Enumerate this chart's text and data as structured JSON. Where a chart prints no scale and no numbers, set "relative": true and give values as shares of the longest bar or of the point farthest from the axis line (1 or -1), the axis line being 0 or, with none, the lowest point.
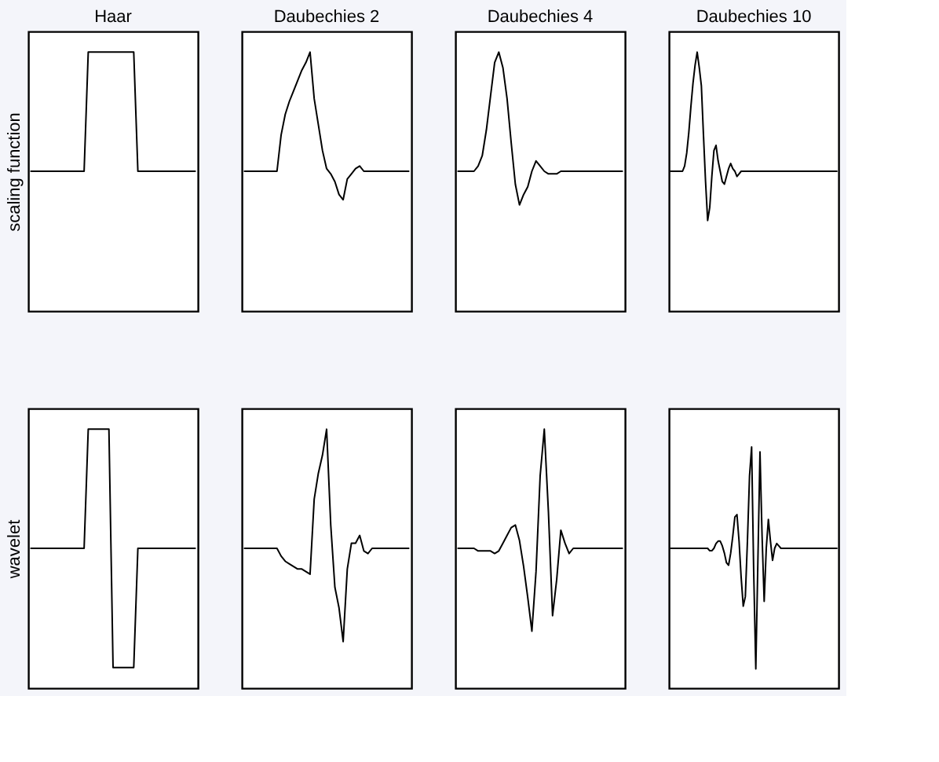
{
  "chart_data": [
    {
      "type": "line",
      "title": "Haar",
      "ylabel": "scaling function",
      "relative": true,
      "color": "#000000",
      "categories": [
        null,
        null,
        null,
        null,
        null,
        null,
        null,
        null,
        null,
        null,
        null,
        null,
        null,
        null,
        null,
        null,
        null,
        null,
        null,
        null,
        null,
        null,
        null,
        null,
        null,
        null,
        null,
        null,
        null,
        null,
        null,
        null,
        null,
        null,
        null,
        null,
        null,
        null,
        null,
        null,
        null
      ],
      "values": [
        0.54,
        0.54,
        0.54,
        0.54,
        0.54,
        0.54,
        0.54,
        0.54,
        0.54,
        0.54,
        0.54,
        0.54,
        0.54,
        0.54,
        1,
        1,
        1,
        1,
        1,
        1,
        1,
        1,
        1,
        1,
        1,
        1,
        0.54,
        0.54,
        0.54,
        0.54,
        0.54,
        0.54,
        0.54,
        0.54,
        0.54,
        0.54,
        0.54,
        0.54,
        0.54,
        0.54,
        0.54
      ]
    },
    {
      "type": "line",
      "title": "Daubechies 2",
      "relative": true,
      "color": "#000000",
      "categories": [
        null,
        null,
        null,
        null,
        null,
        null,
        null,
        null,
        null,
        null,
        null,
        null,
        null,
        null,
        null,
        null,
        null,
        null,
        null,
        null,
        null,
        null,
        null,
        null,
        null,
        null,
        null,
        null,
        null,
        null,
        null,
        null,
        null,
        null,
        null,
        null,
        null,
        null,
        null,
        null,
        null
      ],
      "values": [
        0.54,
        0.54,
        0.54,
        0.54,
        0.54,
        0.54,
        0.54,
        0.54,
        0.54,
        0.68,
        0.76,
        0.81,
        0.85,
        0.89,
        0.93,
        0.96,
        1,
        0.82,
        0.72,
        0.62,
        0.55,
        0.53,
        0.5,
        0.45,
        0.43,
        0.51,
        0.53,
        0.55,
        0.56,
        0.54,
        0.54,
        0.54,
        0.54,
        0.54,
        0.54,
        0.54,
        0.54,
        0.54,
        0.54,
        0.54,
        0.54
      ]
    },
    {
      "type": "line",
      "title": "Daubechies 4",
      "relative": true,
      "color": "#000000",
      "categories": [
        null,
        null,
        null,
        null,
        null,
        null,
        null,
        null,
        null,
        null,
        null,
        null,
        null,
        null,
        null,
        null,
        null,
        null,
        null,
        null,
        null,
        null,
        null,
        null,
        null,
        null,
        null,
        null,
        null,
        null,
        null,
        null,
        null,
        null,
        null,
        null,
        null,
        null,
        null,
        null,
        null
      ],
      "values": [
        0.54,
        0.54,
        0.54,
        0.54,
        0.54,
        0.56,
        0.6,
        0.7,
        0.83,
        0.96,
        1,
        0.94,
        0.82,
        0.65,
        0.49,
        0.41,
        0.45,
        0.48,
        0.54,
        0.58,
        0.56,
        0.54,
        0.53,
        0.53,
        0.53,
        0.54,
        0.54,
        0.54,
        0.54,
        0.54,
        0.54,
        0.54,
        0.54,
        0.54,
        0.54,
        0.54,
        0.54,
        0.54,
        0.54,
        0.54,
        0.54
      ]
    },
    {
      "type": "line",
      "title": "Daubechies 10",
      "relative": true,
      "color": "#000000",
      "categories": [
        null,
        null,
        null,
        null,
        null,
        null,
        null,
        null,
        null,
        null,
        null,
        null,
        null,
        null,
        null,
        null,
        null,
        null,
        null,
        null,
        null,
        null,
        null,
        null,
        null,
        null,
        null,
        null,
        null,
        null,
        null,
        null,
        null,
        null,
        null,
        null,
        null,
        null,
        null,
        null,
        null,
        null,
        null,
        null,
        null,
        null,
        null,
        null,
        null,
        null,
        null,
        null,
        null,
        null,
        null,
        null,
        null,
        null,
        null,
        null,
        null,
        null,
        null,
        null,
        null,
        null,
        null,
        null,
        null,
        null,
        null,
        null,
        null,
        null,
        null,
        null,
        null,
        null,
        null,
        null,
        null
      ],
      "values": [
        0.54,
        0.54,
        0.54,
        0.54,
        0.54,
        0.54,
        0.54,
        0.56,
        0.61,
        0.69,
        0.79,
        0.88,
        0.95,
        1,
        0.94,
        0.87,
        0.68,
        0.5,
        0.35,
        0.4,
        0.52,
        0.62,
        0.64,
        0.58,
        0.54,
        0.5,
        0.49,
        0.52,
        0.55,
        0.57,
        0.55,
        0.54,
        0.52,
        0.53,
        0.54,
        0.54,
        0.54,
        0.54,
        0.54,
        0.54,
        0.54,
        0.54,
        0.54,
        0.54,
        0.54,
        0.54,
        0.54,
        0.54,
        0.54,
        0.54,
        0.54,
        0.54,
        0.54,
        0.54,
        0.54,
        0.54,
        0.54,
        0.54,
        0.54,
        0.54,
        0.54,
        0.54,
        0.54,
        0.54,
        0.54,
        0.54,
        0.54,
        0.54,
        0.54,
        0.54,
        0.54,
        0.54,
        0.54,
        0.54,
        0.54,
        0.54,
        0.54,
        0.54,
        0.54,
        0.54,
        0.54
      ]
    },
    {
      "type": "line",
      "ylabel": "wavelet",
      "relative": true,
      "color": "#000000",
      "categories": [
        null,
        null,
        null,
        null,
        null,
        null,
        null,
        null,
        null,
        null,
        null,
        null,
        null,
        null,
        null,
        null,
        null,
        null,
        null,
        null,
        null,
        null,
        null,
        null,
        null,
        null,
        null,
        null,
        null,
        null,
        null,
        null,
        null,
        null,
        null,
        null,
        null,
        null,
        null,
        null,
        null
      ],
      "values": [
        0.54,
        0.54,
        0.54,
        0.54,
        0.54,
        0.54,
        0.54,
        0.54,
        0.54,
        0.54,
        0.54,
        0.54,
        0.54,
        0.54,
        1,
        1,
        1,
        1,
        1,
        1,
        0.08,
        0.08,
        0.08,
        0.08,
        0.08,
        0.08,
        0.54,
        0.54,
        0.54,
        0.54,
        0.54,
        0.54,
        0.54,
        0.54,
        0.54,
        0.54,
        0.54,
        0.54,
        0.54,
        0.54,
        0.54
      ]
    },
    {
      "type": "line",
      "relative": true,
      "color": "#000000",
      "categories": [
        null,
        null,
        null,
        null,
        null,
        null,
        null,
        null,
        null,
        null,
        null,
        null,
        null,
        null,
        null,
        null,
        null,
        null,
        null,
        null,
        null,
        null,
        null,
        null,
        null,
        null,
        null,
        null,
        null,
        null,
        null,
        null,
        null,
        null,
        null,
        null,
        null,
        null,
        null,
        null,
        null
      ],
      "values": [
        0.54,
        0.54,
        0.54,
        0.54,
        0.54,
        0.54,
        0.54,
        0.54,
        0.54,
        0.51,
        0.49,
        0.48,
        0.47,
        0.46,
        0.46,
        0.45,
        0.44,
        0.73,
        0.83,
        0.9,
        1,
        0.63,
        0.39,
        0.31,
        0.18,
        0.46,
        0.56,
        0.56,
        0.59,
        0.53,
        0.52,
        0.54,
        0.54,
        0.54,
        0.54,
        0.54,
        0.54,
        0.54,
        0.54,
        0.54,
        0.54
      ]
    },
    {
      "type": "line",
      "relative": true,
      "color": "#000000",
      "categories": [
        null,
        null,
        null,
        null,
        null,
        null,
        null,
        null,
        null,
        null,
        null,
        null,
        null,
        null,
        null,
        null,
        null,
        null,
        null,
        null,
        null,
        null,
        null,
        null,
        null,
        null,
        null,
        null,
        null,
        null,
        null,
        null,
        null,
        null,
        null,
        null,
        null,
        null,
        null,
        null,
        null
      ],
      "values": [
        0.54,
        0.54,
        0.54,
        0.54,
        0.54,
        0.53,
        0.53,
        0.53,
        0.53,
        0.52,
        0.53,
        0.56,
        0.59,
        0.62,
        0.63,
        0.57,
        0.47,
        0.35,
        0.22,
        0.45,
        0.82,
        1,
        0.68,
        0.28,
        0.42,
        0.61,
        0.56,
        0.52,
        0.54,
        0.54,
        0.54,
        0.54,
        0.54,
        0.54,
        0.54,
        0.54,
        0.54,
        0.54,
        0.54,
        0.54,
        0.54
      ]
    },
    {
      "type": "line",
      "relative": true,
      "color": "#000000",
      "categories": [
        null,
        null,
        null,
        null,
        null,
        null,
        null,
        null,
        null,
        null,
        null,
        null,
        null,
        null,
        null,
        null,
        null,
        null,
        null,
        null,
        null,
        null,
        null,
        null,
        null,
        null,
        null,
        null,
        null,
        null,
        null,
        null,
        null,
        null,
        null,
        null,
        null,
        null,
        null,
        null,
        null,
        null,
        null,
        null,
        null,
        null,
        null,
        null,
        null,
        null,
        null,
        null,
        null,
        null,
        null,
        null,
        null,
        null,
        null,
        null,
        null,
        null,
        null,
        null,
        null,
        null,
        null,
        null,
        null,
        null,
        null,
        null,
        null,
        null,
        null,
        null,
        null,
        null,
        null,
        null,
        null
      ],
      "values": [
        0.58,
        0.58,
        0.58,
        0.58,
        0.58,
        0.58,
        0.58,
        0.58,
        0.58,
        0.58,
        0.58,
        0.58,
        0.58,
        0.58,
        0.58,
        0.58,
        0.58,
        0.58,
        0.58,
        0.57,
        0.57,
        0.58,
        0.6,
        0.61,
        0.61,
        0.59,
        0.56,
        0.52,
        0.51,
        0.56,
        0.63,
        0.71,
        0.72,
        0.61,
        0.46,
        0.34,
        0.38,
        0.61,
        0.88,
        1,
        0.48,
        0.08,
        0.53,
        0.98,
        0.63,
        0.36,
        0.58,
        0.7,
        0.61,
        0.53,
        0.58,
        0.6,
        0.59,
        0.58,
        0.58,
        0.58,
        0.58,
        0.58,
        0.58,
        0.58,
        0.58,
        0.58,
        0.58,
        0.58,
        0.58,
        0.58,
        0.58,
        0.58,
        0.58,
        0.58,
        0.58,
        0.58,
        0.58,
        0.58,
        0.58,
        0.58,
        0.58,
        0.58,
        0.58,
        0.58,
        0.58
      ]
    }
  ]
}
